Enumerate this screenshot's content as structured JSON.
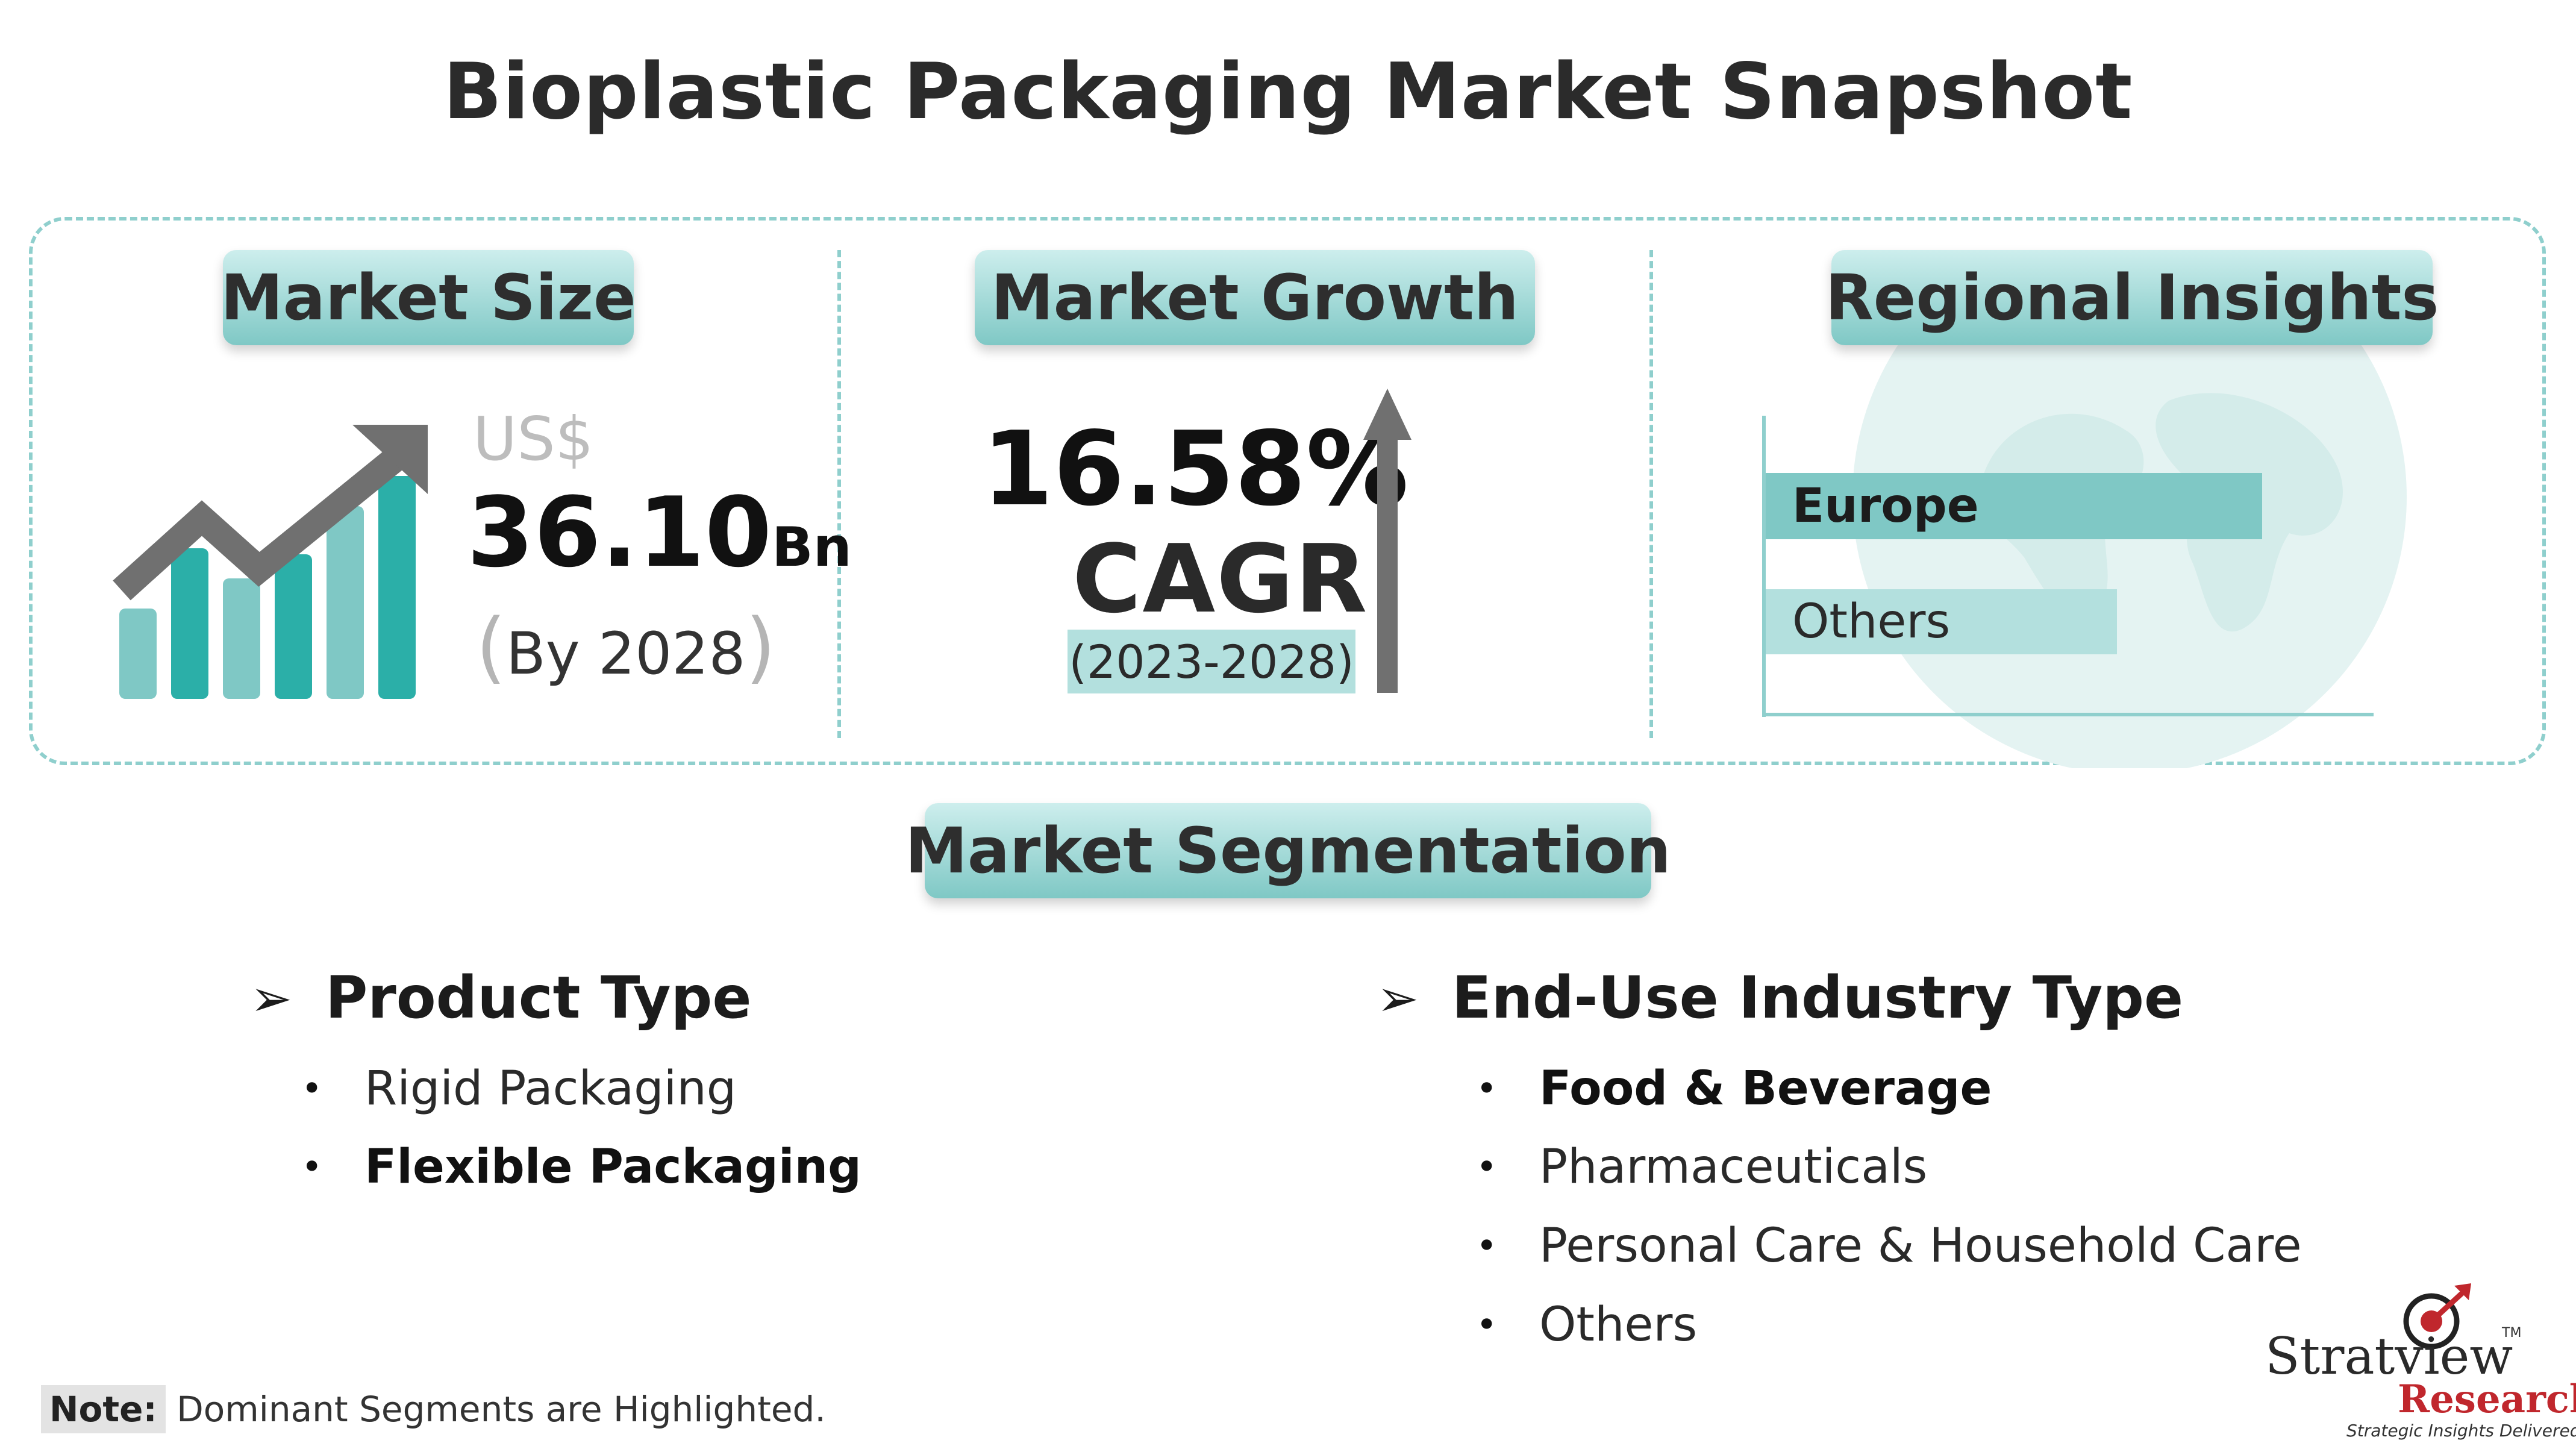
{
  "title": "Bioplastic Packaging Market Snapshot",
  "market_size": {
    "heading": "Market Size",
    "currency": "US$",
    "value": "36.10",
    "unit": "Bn",
    "by_label": "By 2028",
    "paren_open": "(",
    "paren_close": ")"
  },
  "market_growth": {
    "heading": "Market Growth",
    "value": "16.58",
    "percent": "%",
    "label": "CAGR",
    "period": "(2023-2028)"
  },
  "regional": {
    "heading": "Regional Insights",
    "bars": [
      {
        "label": "Europe",
        "value": 0.82,
        "color": "#7fc8c5",
        "bold": true
      },
      {
        "label": "Others",
        "value": 0.58,
        "color": "#b3e0de",
        "bold": false
      }
    ]
  },
  "segmentation": {
    "heading": "Market Segmentation",
    "product_type": {
      "title": "Product Type",
      "items": [
        {
          "label": "Rigid Packaging",
          "dominant": false
        },
        {
          "label": "Flexible Packaging",
          "dominant": true
        }
      ]
    },
    "end_use": {
      "title": "End-Use Industry Type",
      "items": [
        {
          "label": "Food & Beverage",
          "dominant": true
        },
        {
          "label": "Pharmaceuticals",
          "dominant": false
        },
        {
          "label": "Personal Care & Household Care",
          "dominant": false
        },
        {
          "label": "Others",
          "dominant": false
        }
      ]
    },
    "arrow_glyph": "➢",
    "bullet_glyph": "•"
  },
  "note": {
    "tag": "Note:",
    "text": "Dominant Segments are Highlighted."
  },
  "logo": {
    "name": "Stratview",
    "tm": "TM",
    "sub": "Research",
    "tagline": "Strategic Insights Delivered"
  },
  "colors": {
    "teal_dark": "#2bafa8",
    "teal_light": "#7fc8c5",
    "arrow_gray": "#707070",
    "logo_red": "#c0272d"
  }
}
